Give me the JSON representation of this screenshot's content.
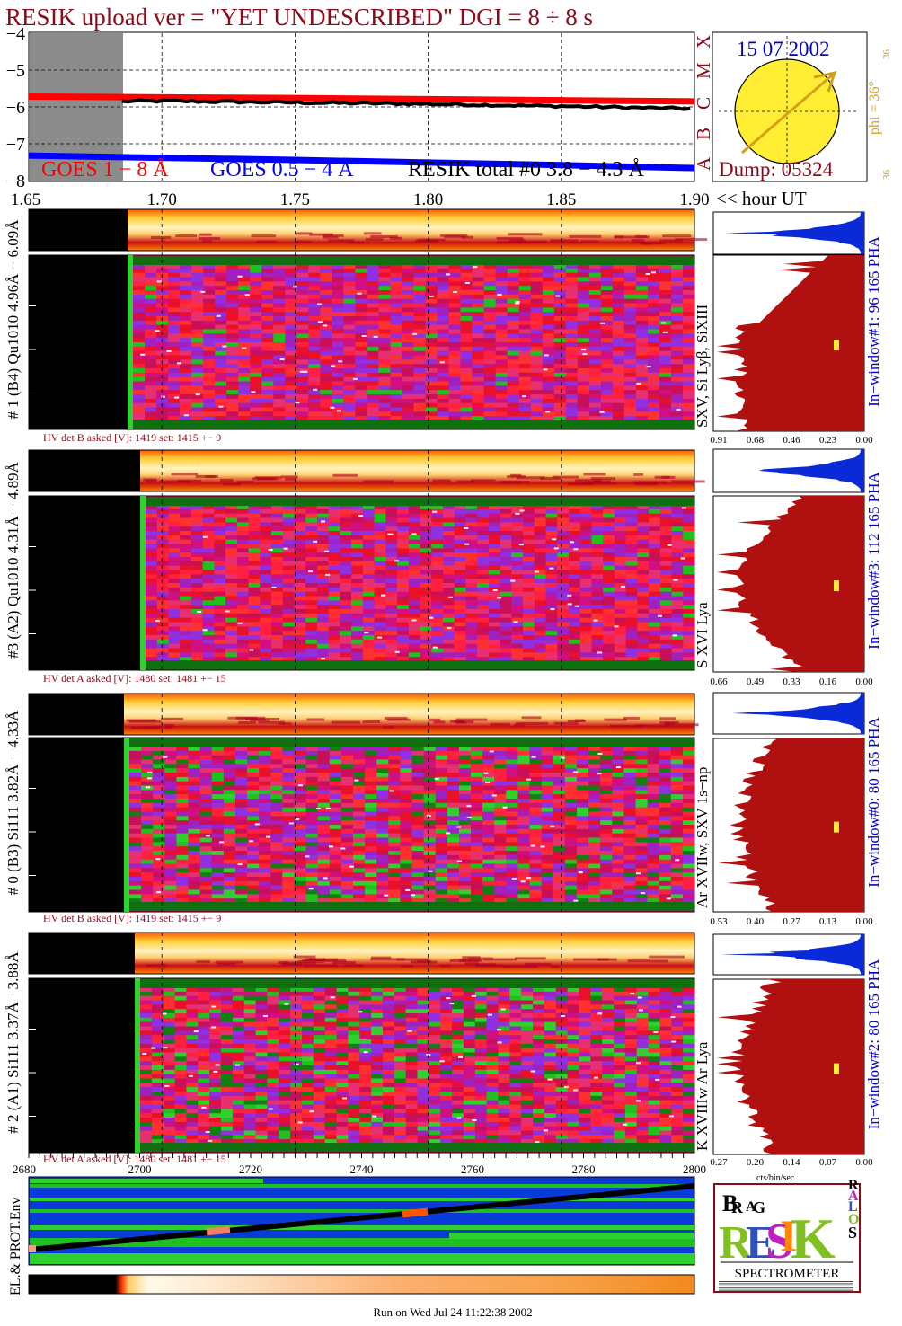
{
  "header": {
    "title": "RESIK upload ver = \"YET UNDESCRIBED\"  DGI =   8 ÷   8 s"
  },
  "goes_panel": {
    "legend_goes_long": "GOES 1 − 8 Å",
    "legend_goes_short": "GOES 0.5 − 4 Å",
    "legend_resik": "RESIK total #0  3.8 − 4.3 Å",
    "class_labels": [
      "A",
      "B",
      "C",
      "M",
      "X"
    ],
    "colors": {
      "goes_long": "#ff0000",
      "goes_short": "#0000ff",
      "resik": "#000000",
      "title": "#8b0a1a"
    }
  },
  "sun_panel": {
    "date": "15 07 2002",
    "dump": "Dump: 05324",
    "phi_label": "phi = 36°",
    "phi_value_top": "36",
    "phi_value_bottom": "36"
  },
  "time_axis": {
    "unit_label": "<< hour UT"
  },
  "channels": [
    {
      "profile_label": "# 1 (B4) Qu1010 4.96Å − 6.09Å",
      "lines_label": "SXV, Si Lyβ, SiXIII",
      "window_label": "In−window#1:   96 165  PHA",
      "hv_text": "HV det B asked [V]:  1419  set:  1415  +−    9",
      "pha_ticks": [
        "0.91",
        "0.68",
        "0.46",
        "0.23",
        "0.00"
      ]
    },
    {
      "profile_label": "#3 (A2) Qu1010  4.31Å − 4.89Å",
      "lines_label": "S XVI Lya",
      "window_label": "In−window#3:  112 165  PHA",
      "hv_text": "HV det A asked [V]:  1480  set:  1481  +−    15",
      "pha_ticks": [
        "0.66",
        "0.49",
        "0.33",
        "0.16",
        "0.00"
      ]
    },
    {
      "profile_label": "# 0 (B3) Si111  3.82Å − 4.33Å",
      "lines_label": "Ar XVIIw,  SXV 1s−np",
      "window_label": "In−window#0:   80 165  PHA",
      "hv_text": "HV det B asked [V]:  1419  set:  1415  +−    9",
      "pha_ticks": [
        "0.53",
        "0.40",
        "0.27",
        "0.13",
        "0.00"
      ]
    },
    {
      "profile_label": "# 2 (A1) Si111  3.37Å− 3.88Å",
      "lines_label": "K XVIIIw  Ar Lya",
      "window_label": "In−window#2:   80 165  PHA",
      "hv_text": "HV det A asked [V]:  1480  set:  1481  +−    15",
      "pha_ticks": [
        "0.27",
        "0.20",
        "0.14",
        "0.07",
        "0.00"
      ]
    }
  ],
  "pha_unit": "cts/bin/sec",
  "env_panel": {
    "label": "EL.& PROT.Env"
  },
  "logo": {
    "letters": [
      "B",
      "R",
      "A",
      "G",
      "R",
      "E",
      "S",
      "I",
      "K",
      "S",
      "O",
      "L",
      "A",
      "R"
    ],
    "caption": "SPECTROMETER"
  },
  "footer": {
    "run_text": "Run on Wed Jul 24 11:22:38 2002"
  },
  "chart_data": [
    {
      "type": "line",
      "title": "RESIK upload ver = \"YET UNDESCRIBED\"  DGI =   8 ÷   8 s",
      "xlabel": "<< hour UT",
      "xlim": [
        1.65,
        1.9
      ],
      "x_ticks": [
        "1.65",
        "1.70",
        "1.75",
        "1.80",
        "1.85",
        "1.90"
      ],
      "ylim": [
        -8,
        -4
      ],
      "y_ticks": [
        "−4",
        "−5",
        "−6",
        "−7",
        "−8"
      ],
      "grid": true,
      "series": [
        {
          "name": "GOES 1 − 8 Å",
          "x": [
            1.65,
            1.7,
            1.75,
            1.8,
            1.85,
            1.9
          ],
          "values": [
            -5.72,
            -5.74,
            -5.76,
            -5.79,
            -5.82,
            -5.85
          ]
        },
        {
          "name": "GOES 0.5 − 4 Å",
          "x": [
            1.65,
            1.7,
            1.75,
            1.8,
            1.85,
            1.9
          ],
          "values": [
            -7.32,
            -7.38,
            -7.44,
            -7.51,
            -7.58,
            -7.66
          ]
        },
        {
          "name": "RESIK total #0  3.8 − 4.3 Å",
          "x": [
            1.685,
            1.7,
            1.75,
            1.8,
            1.85,
            1.9
          ],
          "values": [
            -5.85,
            -5.84,
            -5.88,
            -5.92,
            -5.98,
            -6.05
          ]
        }
      ]
    },
    {
      "type": "heatmap",
      "title": "",
      "xlabel": "",
      "bin_ticks": [
        "2680",
        "2700",
        "2720",
        "2740",
        "2760",
        "2780",
        "2800"
      ],
      "xlim": [
        2680,
        2800
      ],
      "panels": 4
    }
  ]
}
